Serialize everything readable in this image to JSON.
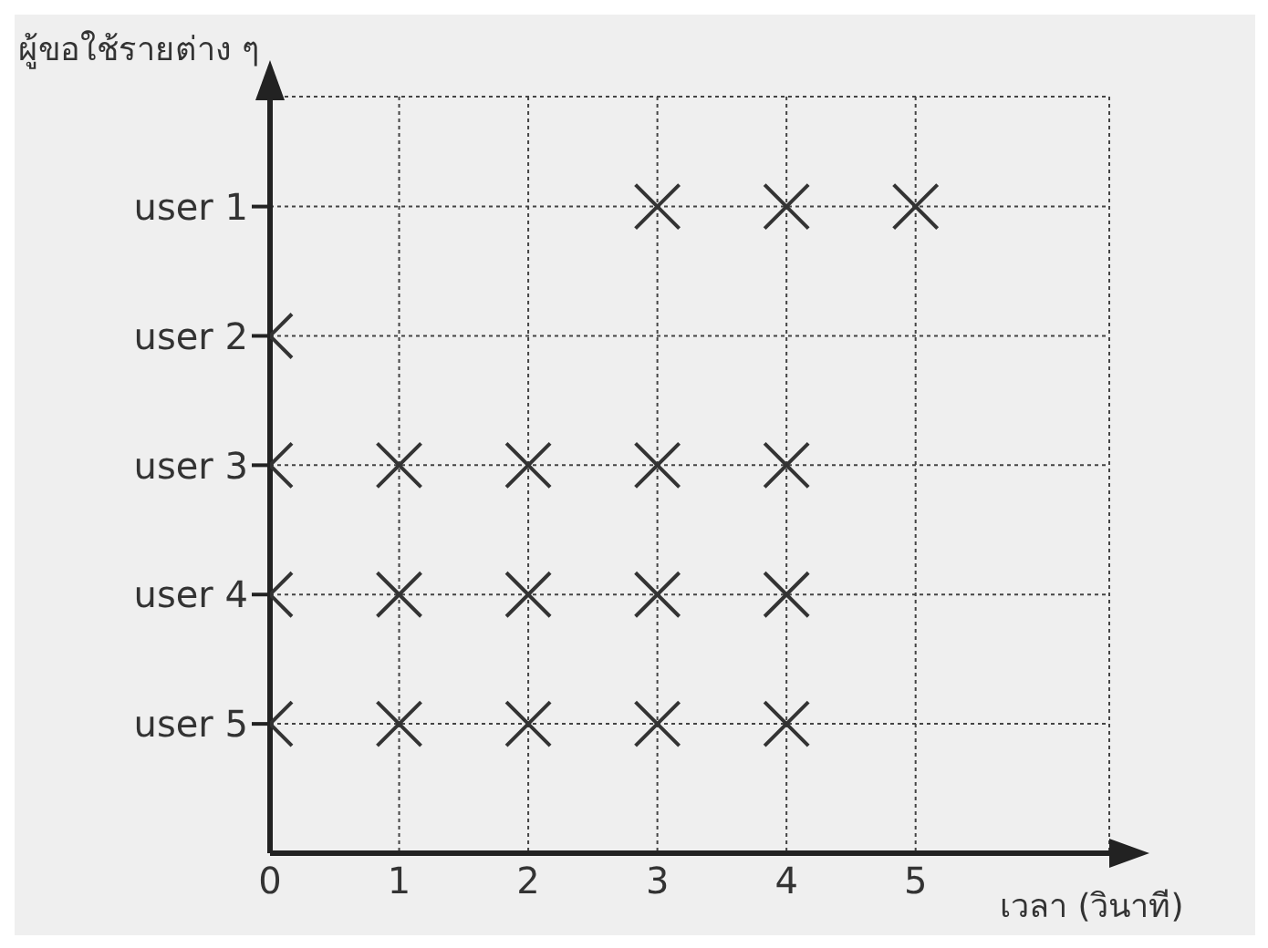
{
  "chart_data": {
    "type": "scatter",
    "orientation": "horizontal",
    "xlabel": "เวลา (วินาที)",
    "ylabel": "ผู้ขอใช้รายต่าง ๆ",
    "categories": [
      "user 1",
      "user 2",
      "user 3",
      "user 4",
      "user 5"
    ],
    "series": [
      {
        "color": "#333333",
        "values": [
          null,
          0,
          0,
          0,
          0
        ]
      },
      {
        "color": "#333333",
        "values": [
          null,
          null,
          1,
          1,
          1
        ]
      },
      {
        "color": "#333333",
        "values": [
          null,
          null,
          2,
          2,
          2
        ]
      },
      {
        "color": "#333333",
        "values": [
          3,
          null,
          3,
          3,
          3
        ]
      },
      {
        "color": "#333333",
        "values": [
          4,
          null,
          4,
          4,
          4
        ]
      },
      {
        "color": "#333333",
        "values": [
          5,
          null,
          null,
          null,
          null
        ]
      }
    ],
    "xlim": [
      0,
      6.5
    ],
    "xticks": [
      0,
      1,
      2,
      3,
      4,
      5
    ],
    "grid": true,
    "marker": "cross"
  }
}
